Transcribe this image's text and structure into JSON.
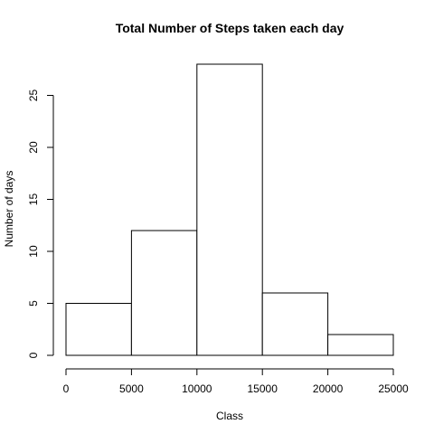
{
  "chart_data": {
    "type": "bar",
    "title": "Total Number of Steps taken each day",
    "xlabel": "Class",
    "ylabel": "Number of days",
    "bins": [
      {
        "from": 0,
        "to": 5000,
        "count": 5
      },
      {
        "from": 5000,
        "to": 10000,
        "count": 12
      },
      {
        "from": 10000,
        "to": 15000,
        "count": 28
      },
      {
        "from": 15000,
        "to": 20000,
        "count": 6
      },
      {
        "from": 20000,
        "to": 25000,
        "count": 2
      }
    ],
    "xticks": [
      0,
      5000,
      10000,
      15000,
      20000,
      25000
    ],
    "yticks": [
      0,
      5,
      10,
      15,
      20,
      25
    ],
    "xlim": [
      0,
      25000
    ],
    "ylim": [
      0,
      28
    ],
    "grid": false,
    "colors": {
      "bar_fill": "#ffffff",
      "bar_stroke": "#000000"
    }
  }
}
